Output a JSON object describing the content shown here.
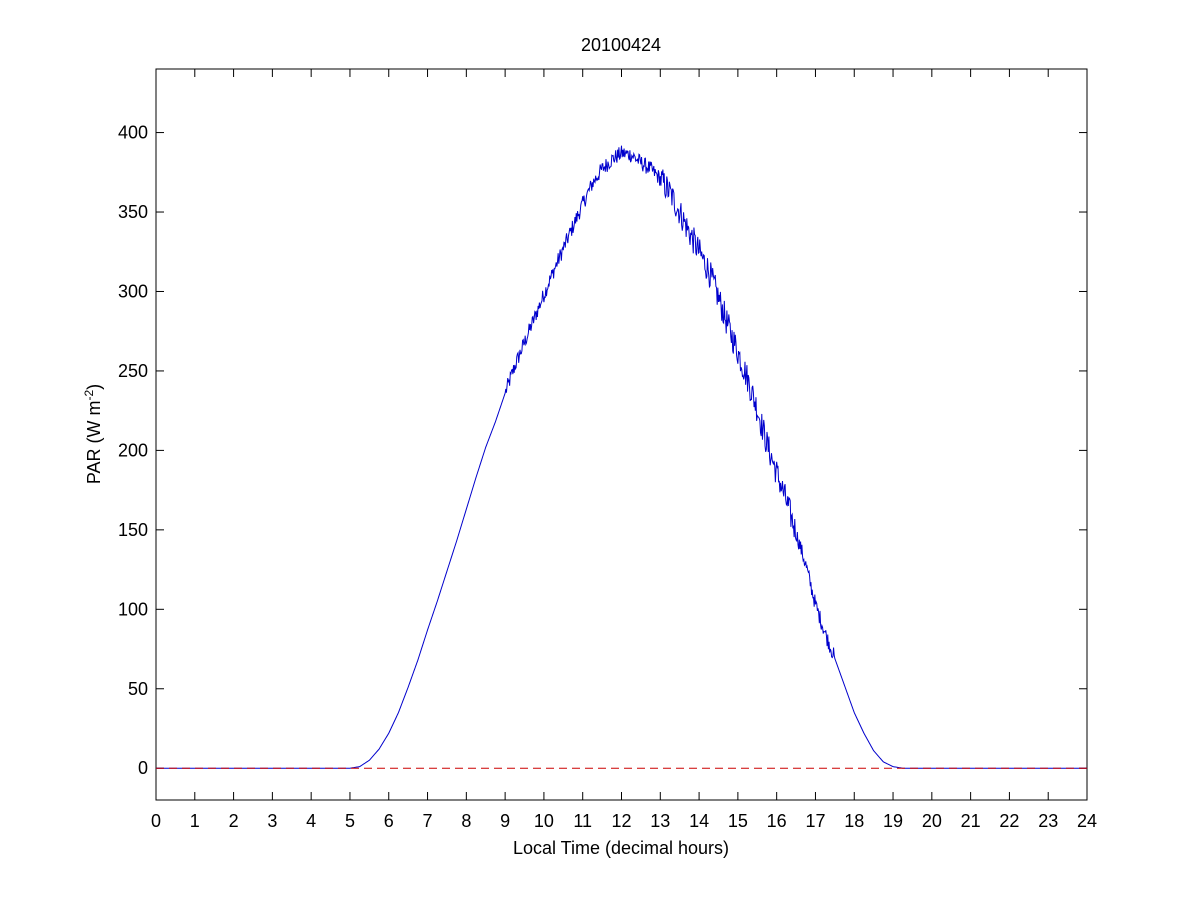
{
  "chart_data": {
    "type": "line",
    "title": "20100424",
    "xlabel": "Local Time (decimal hours)",
    "ylabel_main": "PAR (W m",
    "ylabel_sup": "-2",
    "ylabel_close": ")",
    "xlim": [
      0,
      24
    ],
    "ylim": [
      -20,
      440
    ],
    "xticks": [
      0,
      1,
      2,
      3,
      4,
      5,
      6,
      7,
      8,
      9,
      10,
      11,
      12,
      13,
      14,
      15,
      16,
      17,
      18,
      19,
      20,
      21,
      22,
      23,
      24
    ],
    "yticks": [
      0,
      50,
      100,
      150,
      200,
      250,
      300,
      350,
      400
    ],
    "grid": false,
    "legend": "none",
    "series": [
      {
        "color": "#0000cc",
        "style": "solid",
        "points": [
          [
            0,
            0
          ],
          [
            5,
            0
          ],
          [
            5.25,
            1
          ],
          [
            5.5,
            5
          ],
          [
            5.75,
            12
          ],
          [
            6,
            22
          ],
          [
            6.25,
            35
          ],
          [
            6.5,
            51
          ],
          [
            6.75,
            68
          ],
          [
            7,
            87
          ],
          [
            7.25,
            105
          ],
          [
            7.5,
            124
          ],
          [
            7.75,
            143
          ],
          [
            8,
            163
          ],
          [
            8.25,
            183
          ],
          [
            8.5,
            202
          ],
          [
            8.75,
            218
          ],
          [
            9,
            236
          ],
          [
            9.25,
            253
          ],
          [
            9.5,
            268
          ],
          [
            9.75,
            283
          ],
          [
            10,
            298
          ],
          [
            10.25,
            313
          ],
          [
            10.5,
            327
          ],
          [
            10.75,
            341
          ],
          [
            11,
            355
          ],
          [
            11.25,
            368
          ],
          [
            11.5,
            377
          ],
          [
            11.75,
            383
          ],
          [
            12,
            387
          ],
          [
            12.25,
            386
          ],
          [
            12.5,
            381
          ],
          [
            12.75,
            377
          ],
          [
            13,
            371
          ],
          [
            13.25,
            362
          ],
          [
            13.5,
            350
          ],
          [
            13.75,
            337
          ],
          [
            14,
            325
          ],
          [
            14.25,
            313
          ],
          [
            14.5,
            296
          ],
          [
            14.75,
            278
          ],
          [
            15,
            262
          ],
          [
            15.25,
            245
          ],
          [
            15.5,
            226
          ],
          [
            15.75,
            204
          ],
          [
            16,
            186
          ],
          [
            16.25,
            168
          ],
          [
            16.5,
            148
          ],
          [
            16.75,
            128
          ],
          [
            17,
            103
          ],
          [
            17.25,
            85
          ],
          [
            17.5,
            69
          ],
          [
            17.75,
            52
          ],
          [
            18,
            35
          ],
          [
            18.25,
            22
          ],
          [
            18.5,
            11
          ],
          [
            18.75,
            4
          ],
          [
            19,
            1
          ],
          [
            19.25,
            0
          ],
          [
            24,
            0
          ]
        ]
      },
      {
        "color": "#cc0000",
        "style": "dashed",
        "points": [
          [
            0,
            0
          ],
          [
            24,
            0
          ]
        ]
      }
    ]
  }
}
